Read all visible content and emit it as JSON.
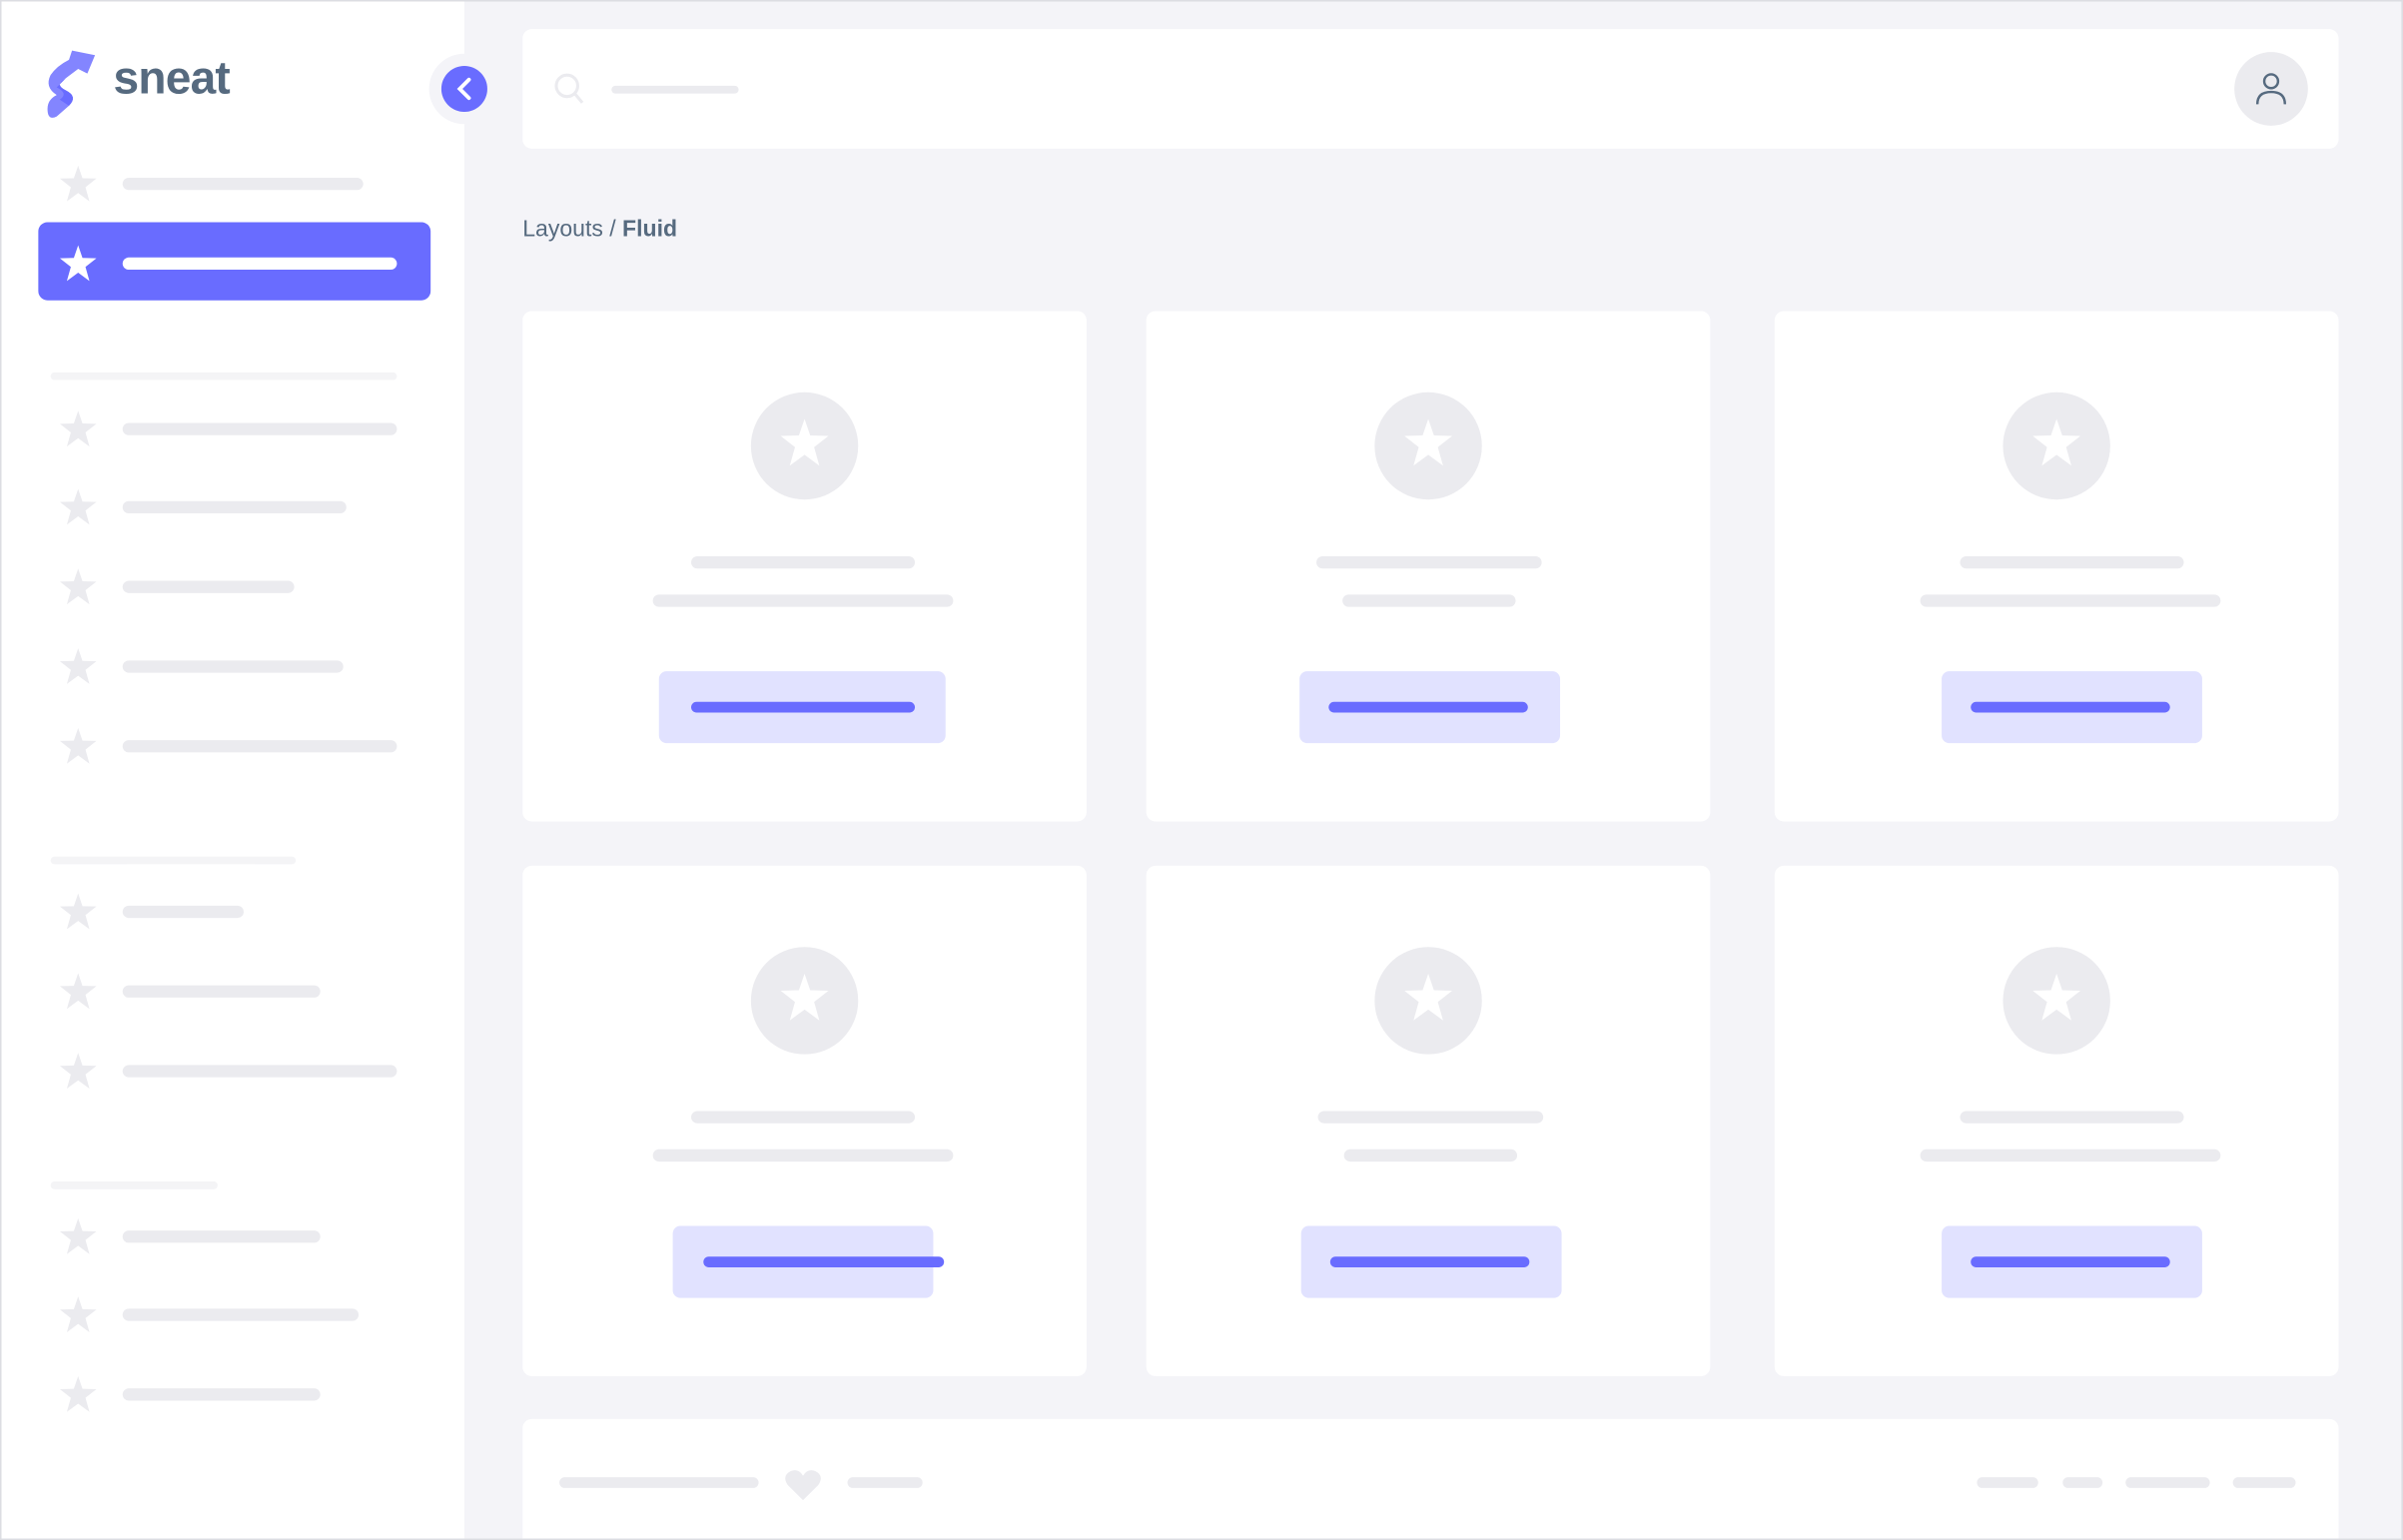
{
  "brand": {
    "name": "sneat",
    "logo_icon": "sneat-s-logo"
  },
  "breadcrumb": {
    "parent": "Layouts",
    "separator": "/",
    "current": "Fluid"
  },
  "colors": {
    "primary": "#696cff",
    "primary_light": "#e1e2ff",
    "skeleton": "#ebebef",
    "text": "#566a7f",
    "background": "#f4f4f8"
  },
  "icons": {
    "collapse": "chevron-left-icon",
    "search": "search-icon",
    "user": "user-icon",
    "nav": "star-icon",
    "footer": "heart-icon"
  }
}
